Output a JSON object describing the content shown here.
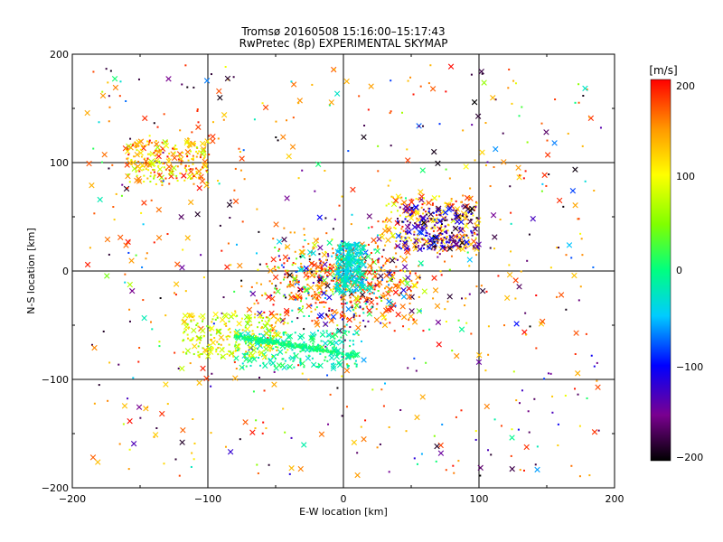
{
  "chart_data": {
    "type": "scatter",
    "title": "Tromsø 20160508 15:16:00–15:17:43",
    "subtitle": "RwPretec (8p) EXPERIMENTAL SKYMAP",
    "xlabel": "E-W location [km]",
    "ylabel": "N-S location [km]",
    "xlim": [
      -200,
      200
    ],
    "ylim": [
      -200,
      200
    ],
    "x_ticks": [
      "−200",
      "−100",
      "0",
      "100",
      "200"
    ],
    "y_ticks": [
      "−200",
      "−100",
      "0",
      "100",
      "200"
    ],
    "grid": true,
    "colorbar": {
      "label": "[m/s]",
      "range": [
        -200,
        200
      ],
      "ticks": [
        "200",
        "100",
        "0",
        "−100",
        "−200"
      ],
      "colors": [
        "#000000",
        "#7a0090",
        "#0000ff",
        "#00ccff",
        "#00ff80",
        "#80ff00",
        "#ffff00",
        "#ff9900",
        "#ff0000"
      ]
    },
    "marker_types": [
      "dot",
      "cross"
    ],
    "clusters": [
      {
        "region": "north-east",
        "x": [
          30,
          100
        ],
        "y": [
          20,
          70
        ],
        "velocity": [
          80,
          200
        ]
      },
      {
        "region": "north-east",
        "x": [
          40,
          100
        ],
        "y": [
          20,
          60
        ],
        "velocity": [
          -200,
          -80
        ]
      },
      {
        "region": "centre",
        "x": [
          -5,
          15
        ],
        "y": [
          -20,
          25
        ],
        "velocity": [
          -60,
          0
        ]
      },
      {
        "region": "south-centre",
        "x": [
          -80,
          10
        ],
        "y": [
          -90,
          -55
        ],
        "velocity": [
          -40,
          20
        ]
      },
      {
        "region": "south-west",
        "x": [
          -120,
          -40
        ],
        "y": [
          -80,
          -40
        ],
        "velocity": [
          40,
          140
        ]
      },
      {
        "region": "north-west",
        "x": [
          -160,
          -100
        ],
        "y": [
          80,
          120
        ],
        "velocity": [
          60,
          200
        ]
      }
    ],
    "velocity_range_observed": [
      -200,
      200
    ]
  }
}
